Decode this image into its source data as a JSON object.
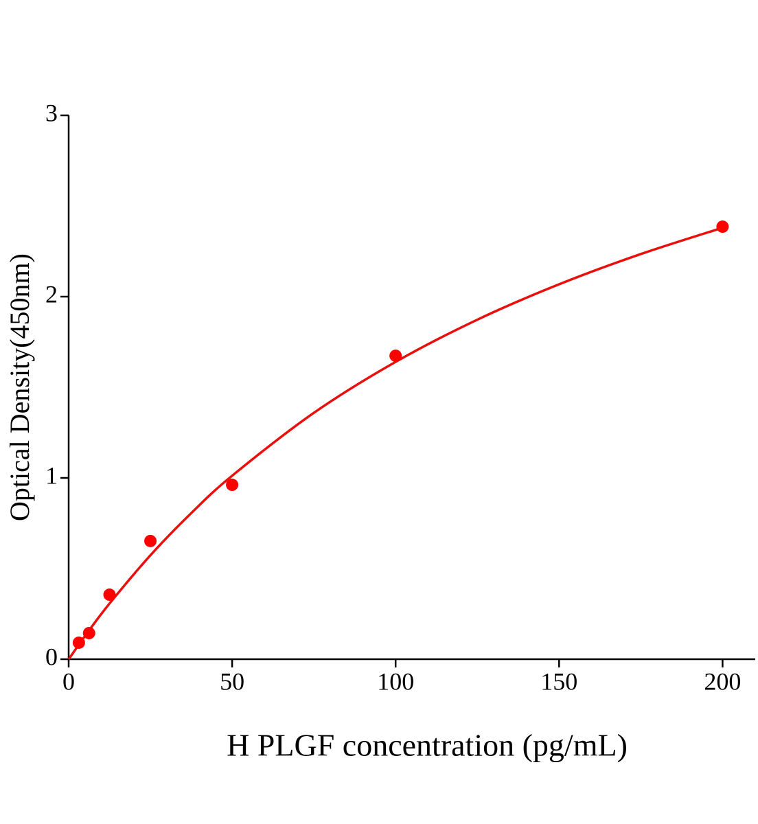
{
  "chart_data": {
    "type": "scatter",
    "x_label": "H PLGF concentration (pg/mL)",
    "y_label": "Optical Density(450nm)",
    "xlim": [
      0,
      210
    ],
    "xticks": [
      0,
      50,
      100,
      150,
      200
    ],
    "ylim": [
      0,
      3
    ],
    "yticks": [
      0,
      1,
      2,
      3
    ],
    "grid": false,
    "series": [
      {
        "type": "scatter",
        "color": "#ff0000",
        "x": [
          3.125,
          6.25,
          12.5,
          25,
          50,
          100,
          200
        ],
        "values": [
          0.091,
          0.144,
          0.356,
          0.652,
          0.962,
          1.674,
          2.386
        ]
      },
      {
        "type": "line",
        "color": "#e8100c",
        "x": [
          0,
          6.25,
          12.5,
          25,
          37.5,
          50,
          75,
          100,
          125,
          150,
          175,
          200
        ],
        "values": [
          0,
          0.159,
          0.307,
          0.573,
          0.806,
          1.012,
          1.359,
          1.64,
          1.873,
          2.068,
          2.235,
          2.38
        ]
      }
    ]
  }
}
